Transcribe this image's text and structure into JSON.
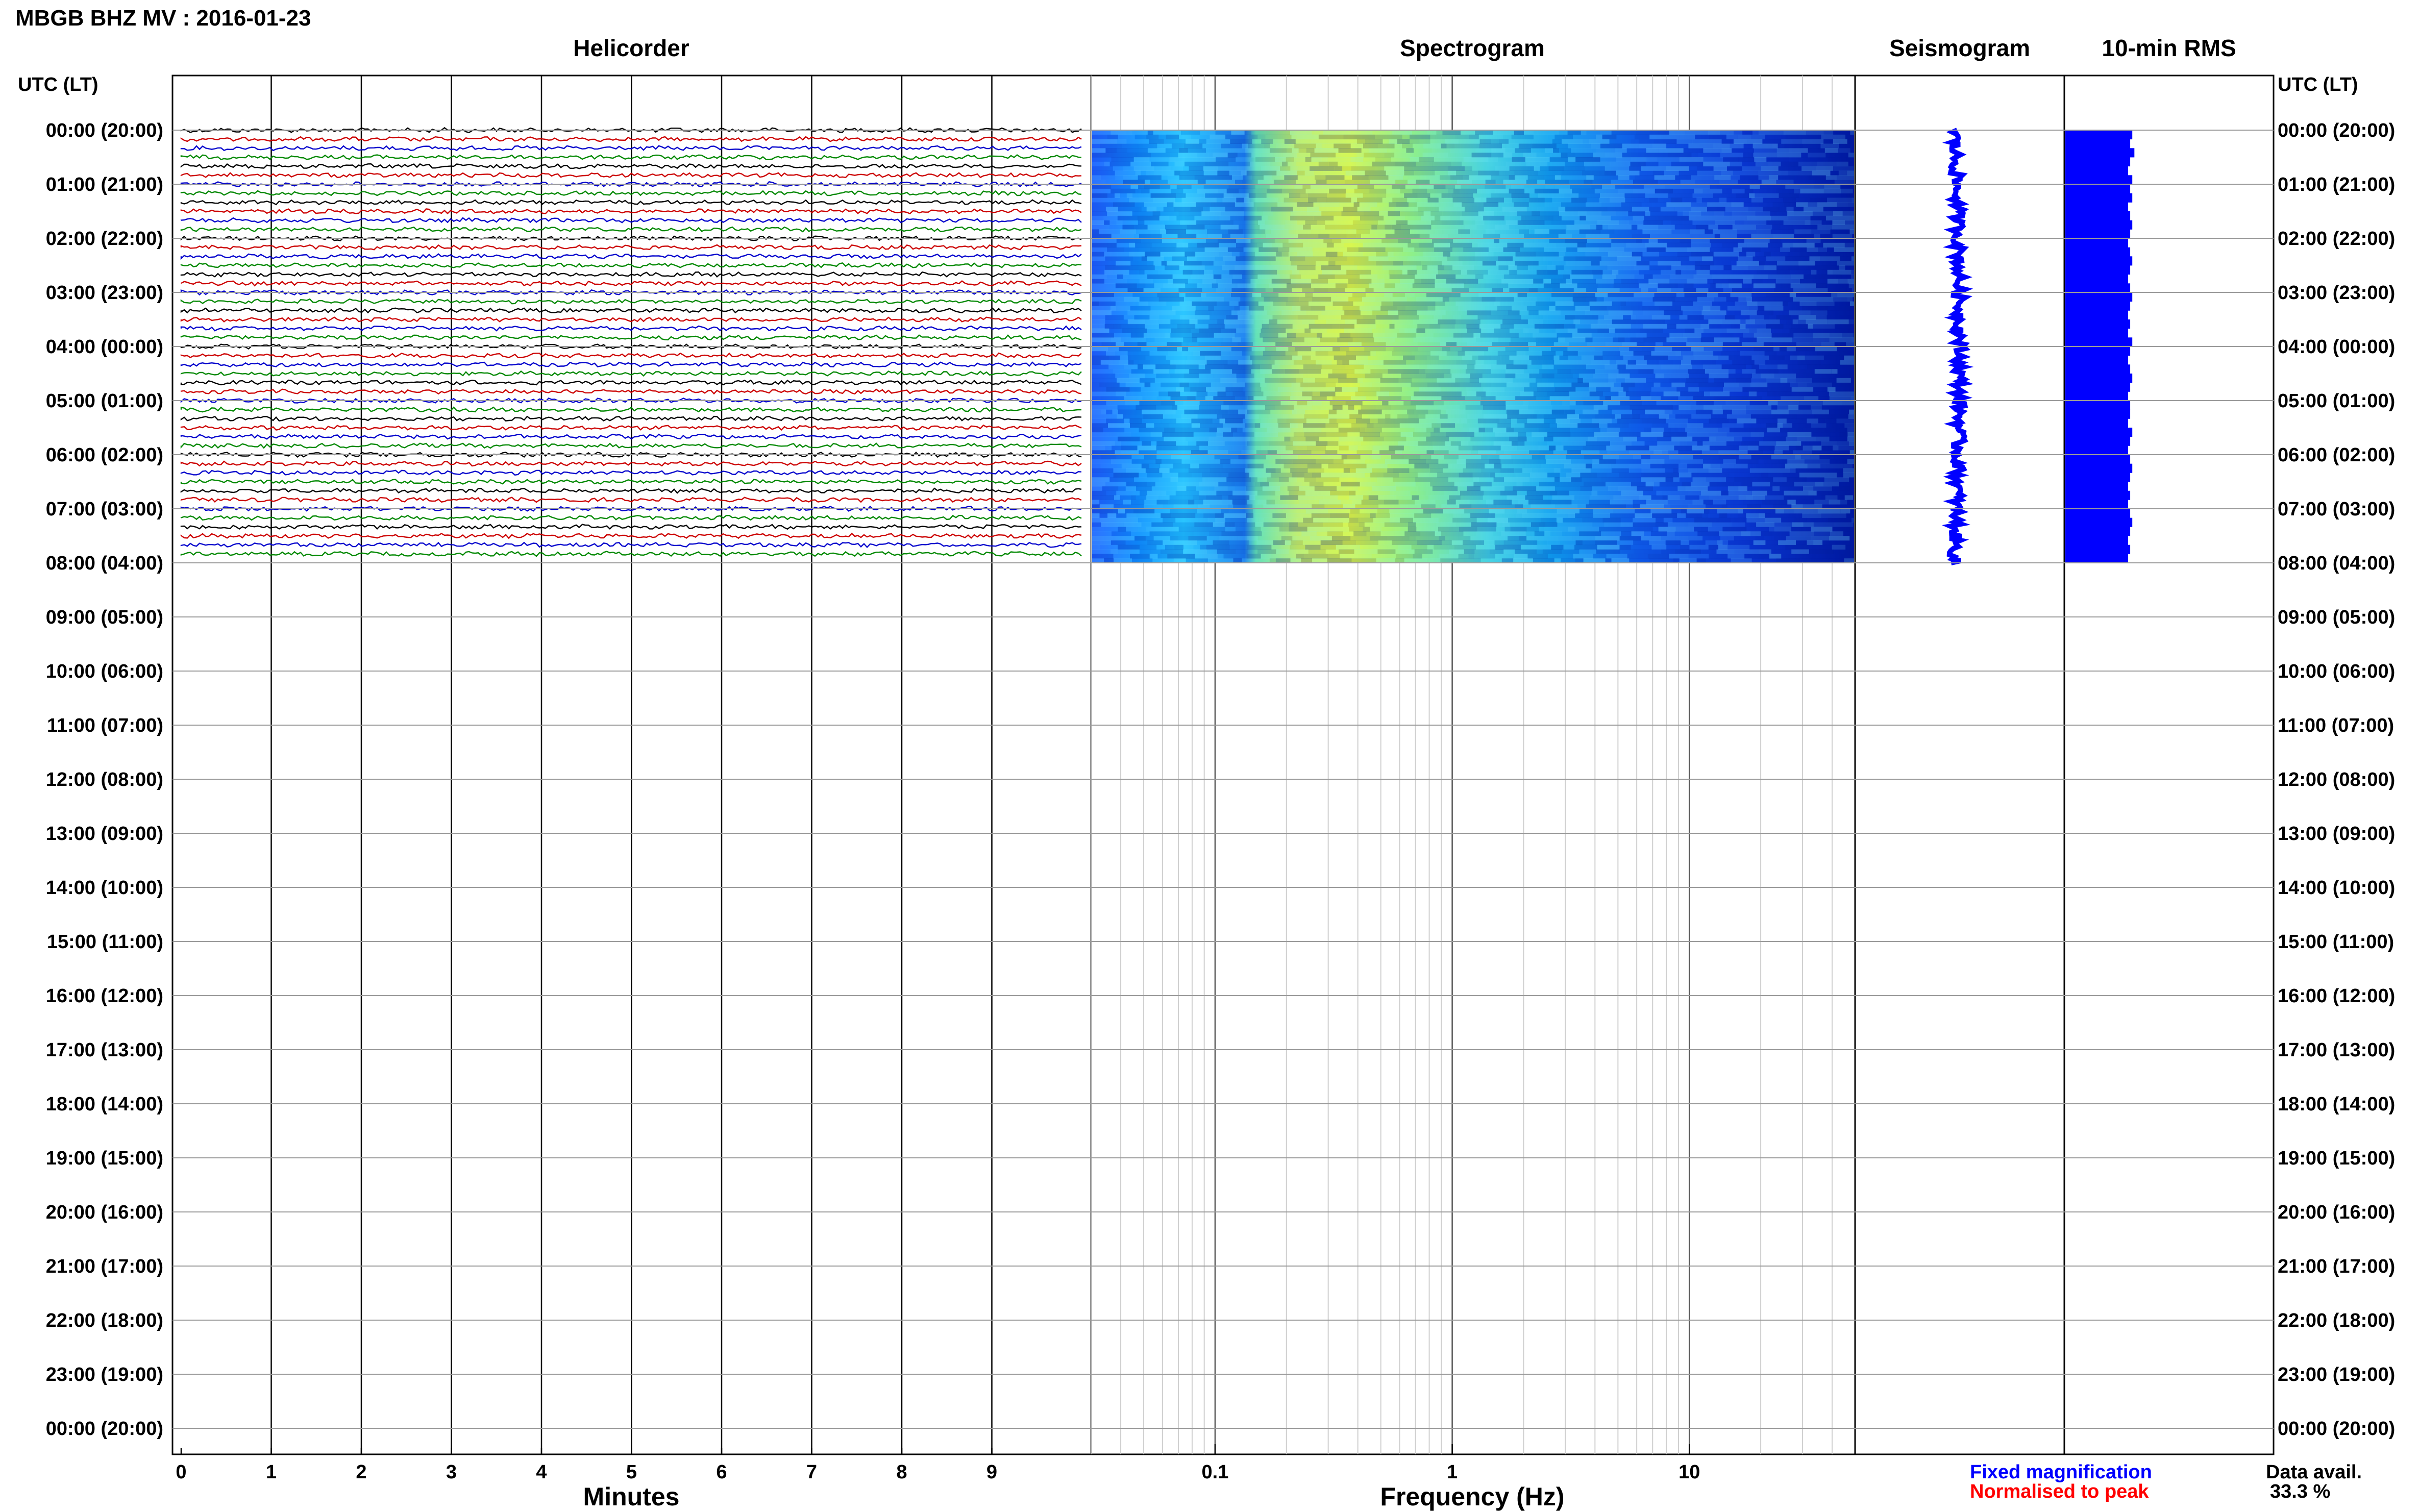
{
  "figure": {
    "station_title": "MBGB BHZ MV : 2016-01-23",
    "left_time_header": "UTC (LT)",
    "right_time_header": "UTC (LT)",
    "panels": {
      "helicorder": "Helicorder",
      "spectrogram": "Spectrogram",
      "seismogram": "Seismogram",
      "rms": "10-min RMS"
    },
    "legend": {
      "fixed_magnification": "Fixed magnification",
      "normalised": "Normalised to peak",
      "fixed_color": "#0000ff",
      "normalised_color": "#ff0000"
    },
    "data_avail": {
      "label": "Data avail.",
      "value": "33.3 %"
    },
    "time_rows": [
      "00:00 (20:00)",
      "01:00 (21:00)",
      "02:00 (22:00)",
      "03:00 (23:00)",
      "04:00 (00:00)",
      "05:00 (01:00)",
      "06:00 (02:00)",
      "07:00 (03:00)",
      "08:00 (04:00)",
      "09:00 (05:00)",
      "10:00 (06:00)",
      "11:00 (07:00)",
      "12:00 (08:00)",
      "13:00 (09:00)",
      "14:00 (10:00)",
      "15:00 (11:00)",
      "16:00 (12:00)",
      "17:00 (13:00)",
      "18:00 (14:00)",
      "19:00 (15:00)",
      "20:00 (16:00)",
      "21:00 (17:00)",
      "22:00 (18:00)",
      "23:00 (19:00)",
      "00:00 (20:00)"
    ]
  },
  "chart_data": [
    {
      "type": "line",
      "name": "helicorder",
      "title": "Helicorder",
      "xlabel": "Minutes",
      "x_ticks": [
        "0",
        "1",
        "2",
        "3",
        "4",
        "5",
        "6",
        "7",
        "8",
        "9"
      ],
      "xlim": [
        0,
        10
      ],
      "trace_colors": [
        "#000000",
        "#cc0000",
        "#0000cc",
        "#008800"
      ],
      "traces_per_hour": 6,
      "hours_with_data": 8,
      "grid": true
    },
    {
      "type": "heatmap",
      "name": "spectrogram",
      "title": "Spectrogram",
      "xlabel": "Frequency (Hz)",
      "x_scale": "log",
      "x_ticks": [
        "0.1",
        "1",
        "10"
      ],
      "xlim": [
        0.03,
        50
      ],
      "hours_with_data": 8,
      "colormap": "jet",
      "note_visible": "energy peaks around 0.15-0.4 Hz"
    },
    {
      "type": "scatter",
      "name": "seismogram",
      "title": "Seismogram",
      "color": "#0000ff",
      "hours_with_data": 8
    },
    {
      "type": "bar",
      "name": "rms",
      "title": "10-min RMS",
      "color": "#0000ff",
      "bins_per_hour": 6,
      "values": [
        0.32,
        0.31,
        0.33,
        0.31,
        0.3,
        0.32,
        0.31,
        0.32,
        0.3,
        0.31,
        0.32,
        0.31,
        0.3,
        0.31,
        0.32,
        0.31,
        0.3,
        0.31,
        0.32,
        0.31,
        0.3,
        0.31,
        0.3,
        0.32,
        0.31,
        0.3,
        0.31,
        0.32,
        0.31,
        0.3,
        0.31,
        0.31,
        0.3,
        0.32,
        0.31,
        0.3,
        0.31,
        0.32,
        0.31,
        0.3,
        0.31,
        0.3,
        0.31,
        0.32,
        0.31,
        0.3,
        0.31,
        0.3
      ]
    }
  ]
}
